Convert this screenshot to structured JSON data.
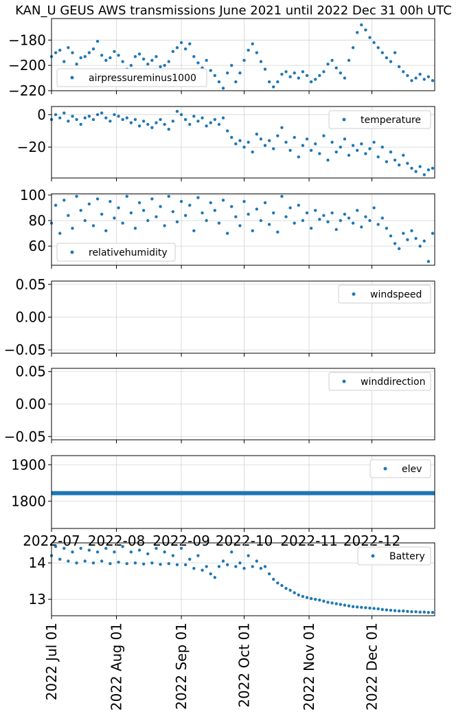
{
  "title": "KAN_U GEUS AWS transmissions June 2021 until 2022 Dec 31 00h UTC",
  "colors": {
    "series": "#1f77b4",
    "grid": "#d3d3d3"
  },
  "chart_data": [
    {
      "type": "scatter",
      "name": "airpressureminus1000",
      "legend": "airpressureminus1000",
      "legend_loc": "lower-left",
      "ylim": [
        -220,
        -163
      ],
      "yticks": [
        -220,
        -200,
        -180
      ],
      "ytick_labels": [
        "−220",
        "−200",
        "−180"
      ],
      "x_range": [
        0,
        183
      ],
      "x": [
        0,
        2,
        4,
        6,
        8,
        10,
        12,
        14,
        16,
        18,
        20,
        22,
        24,
        26,
        28,
        30,
        32,
        34,
        36,
        38,
        40,
        42,
        44,
        46,
        48,
        50,
        52,
        54,
        56,
        58,
        60,
        62,
        64,
        66,
        68,
        70,
        72,
        74,
        76,
        78,
        80,
        82,
        84,
        86,
        88,
        90,
        92,
        94,
        96,
        98,
        100,
        102,
        104,
        106,
        108,
        110,
        112,
        114,
        116,
        118,
        120,
        122,
        124,
        126,
        128,
        130,
        132,
        134,
        136,
        138,
        140,
        142,
        144,
        146,
        148,
        150,
        152,
        154,
        156,
        158,
        160,
        162,
        164,
        166,
        168,
        170,
        172,
        174,
        176,
        178,
        180,
        182
      ],
      "y": [
        -193,
        -190,
        -188,
        -197,
        -186,
        -190,
        -199,
        -194,
        -193,
        -190,
        -187,
        -181,
        -192,
        -196,
        -194,
        -189,
        -192,
        -197,
        -203,
        -200,
        -193,
        -191,
        -195,
        -199,
        -196,
        -193,
        -201,
        -200,
        -197,
        -189,
        -186,
        -182,
        -187,
        -183,
        -193,
        -198,
        -202,
        -196,
        -204,
        -208,
        -213,
        -218,
        -206,
        -200,
        -213,
        -206,
        -196,
        -188,
        -183,
        -190,
        -197,
        -203,
        -213,
        -217,
        -213,
        -207,
        -205,
        -209,
        -206,
        -210,
        -205,
        -208,
        -213,
        -211,
        -208,
        -205,
        -199,
        -196,
        -202,
        -206,
        -210,
        -196,
        -186,
        -174,
        -168,
        -172,
        -178,
        -182,
        -186,
        -190,
        -194,
        -197,
        -190,
        -201,
        -205,
        -208,
        -212,
        -210,
        -207,
        -211,
        -209,
        -212
      ]
    },
    {
      "type": "scatter",
      "name": "temperature",
      "legend": "temperature",
      "legend_loc": "upper-right",
      "ylim": [
        -39,
        5
      ],
      "yticks": [
        -20,
        0
      ],
      "ytick_labels": [
        "−20",
        "0"
      ],
      "x_range": [
        0,
        183
      ],
      "x": [
        0,
        2,
        4,
        6,
        8,
        10,
        12,
        14,
        16,
        18,
        20,
        22,
        24,
        26,
        28,
        30,
        32,
        34,
        36,
        38,
        40,
        42,
        44,
        46,
        48,
        50,
        52,
        54,
        56,
        58,
        60,
        62,
        64,
        66,
        68,
        70,
        72,
        74,
        76,
        78,
        80,
        82,
        84,
        86,
        88,
        90,
        92,
        94,
        96,
        98,
        100,
        102,
        104,
        106,
        108,
        110,
        112,
        114,
        116,
        118,
        120,
        122,
        124,
        126,
        128,
        130,
        132,
        134,
        136,
        138,
        140,
        142,
        144,
        146,
        148,
        150,
        152,
        154,
        156,
        158,
        160,
        162,
        164,
        166,
        168,
        170,
        172,
        174,
        176,
        178,
        180,
        182
      ],
      "y": [
        -3,
        0,
        -2,
        1,
        -4,
        -1,
        -3,
        -6,
        -2,
        -1,
        -3,
        0,
        1,
        -2,
        -4,
        0,
        -1,
        -3,
        -2,
        -5,
        -3,
        -7,
        -4,
        -6,
        -8,
        -5,
        -3,
        -6,
        -9,
        -4,
        2,
        0,
        -3,
        -6,
        -1,
        -4,
        -2,
        -7,
        -5,
        -3,
        -6,
        -2,
        -10,
        -14,
        -18,
        -16,
        -20,
        -17,
        -23,
        -12,
        -15,
        -19,
        -16,
        -21,
        -13,
        -8,
        -17,
        -22,
        -14,
        -26,
        -19,
        -15,
        -22,
        -18,
        -24,
        -13,
        -28,
        -17,
        -23,
        -20,
        -15,
        -25,
        -19,
        -22,
        -18,
        -24,
        -21,
        -17,
        -26,
        -20,
        -29,
        -23,
        -28,
        -31,
        -25,
        -30,
        -33,
        -35,
        -32,
        -37,
        -34,
        -33
      ]
    },
    {
      "type": "scatter",
      "name": "relativehumidity",
      "legend": "relativehumidity",
      "legend_loc": "lower-left",
      "ylim": [
        45,
        101
      ],
      "yticks": [
        60,
        80,
        100
      ],
      "ytick_labels": [
        "60",
        "80",
        "100"
      ],
      "x_range": [
        0,
        183
      ],
      "x": [
        0,
        2,
        4,
        6,
        8,
        10,
        12,
        14,
        16,
        18,
        20,
        22,
        24,
        26,
        28,
        30,
        32,
        34,
        36,
        38,
        40,
        42,
        44,
        46,
        48,
        50,
        52,
        54,
        56,
        58,
        60,
        62,
        64,
        66,
        68,
        70,
        72,
        74,
        76,
        78,
        80,
        82,
        84,
        86,
        88,
        90,
        92,
        94,
        96,
        98,
        100,
        102,
        104,
        106,
        108,
        110,
        112,
        114,
        116,
        118,
        120,
        122,
        124,
        126,
        128,
        130,
        132,
        134,
        136,
        138,
        140,
        142,
        144,
        146,
        148,
        150,
        152,
        154,
        156,
        158,
        160,
        162,
        164,
        166,
        168,
        170,
        172,
        174,
        176,
        178,
        180,
        182
      ],
      "y": [
        78,
        92,
        70,
        96,
        84,
        74,
        99,
        88,
        80,
        93,
        76,
        97,
        85,
        72,
        95,
        82,
        90,
        78,
        99,
        86,
        74,
        94,
        88,
        80,
        97,
        83,
        91,
        76,
        99,
        87,
        79,
        95,
        84,
        92,
        72,
        98,
        86,
        80,
        94,
        88,
        78,
        96,
        70,
        91,
        83,
        76,
        95,
        85,
        72,
        89,
        80,
        94,
        77,
        86,
        71,
        99,
        83,
        90,
        78,
        92,
        80,
        86,
        74,
        88,
        81,
        84,
        79,
        86,
        73,
        80,
        85,
        82,
        78,
        88,
        75,
        83,
        80,
        90,
        77,
        82,
        74,
        68,
        62,
        58,
        70,
        65,
        72,
        66,
        60,
        64,
        48,
        70
      ]
    },
    {
      "type": "scatter",
      "name": "windspeed",
      "legend": "windspeed",
      "legend_loc": "upper-right",
      "ylim": [
        -0.055,
        0.055
      ],
      "yticks": [
        -0.05,
        0.0,
        0.05
      ],
      "ytick_labels": [
        "−0.05",
        "0.00",
        "0.05"
      ],
      "x_range": [
        0,
        183
      ],
      "x": [],
      "y": []
    },
    {
      "type": "scatter",
      "name": "winddirection",
      "legend": "winddirection",
      "legend_loc": "upper-right",
      "ylim": [
        -0.055,
        0.055
      ],
      "yticks": [
        -0.05,
        0.0,
        0.05
      ],
      "ytick_labels": [
        "−0.05",
        "0.00",
        "0.05"
      ],
      "x_range": [
        0,
        183
      ],
      "x": [],
      "y": []
    },
    {
      "type": "line",
      "name": "elev",
      "legend": "elev",
      "legend_loc": "upper-right",
      "ylim": [
        1725,
        1925
      ],
      "yticks": [
        1800,
        1900
      ],
      "ytick_labels": [
        "1800",
        "1900"
      ],
      "x_range": [
        0,
        183
      ],
      "x": [
        0,
        183
      ],
      "y": [
        1822,
        1822
      ],
      "xtick_labels_top": [
        "2022-07",
        "2022-08",
        "2022-09",
        "2022-10",
        "2022-11",
        "2022-12"
      ]
    },
    {
      "type": "scatter",
      "name": "Battery",
      "legend": "Battery",
      "legend_loc": "upper-right",
      "ylim": [
        12.55,
        14.55
      ],
      "yticks": [
        13,
        14
      ],
      "ytick_labels": [
        "13",
        "14"
      ],
      "x_range": [
        0,
        183
      ],
      "x": [
        0,
        2,
        4,
        6,
        8,
        10,
        12,
        14,
        16,
        18,
        20,
        22,
        24,
        26,
        28,
        30,
        32,
        34,
        36,
        38,
        40,
        42,
        44,
        46,
        48,
        50,
        52,
        54,
        56,
        58,
        60,
        62,
        64,
        66,
        68,
        70,
        72,
        74,
        76,
        78,
        80,
        82,
        84,
        86,
        88,
        90,
        92,
        94,
        96,
        98,
        100,
        102,
        104,
        106,
        108,
        110,
        112,
        114,
        116,
        118,
        120,
        122,
        124,
        126,
        128,
        130,
        132,
        134,
        136,
        138,
        140,
        142,
        144,
        146,
        148,
        150,
        152,
        154,
        156,
        158,
        160,
        162,
        164,
        166,
        168,
        170,
        172,
        174,
        176,
        178,
        180,
        182
      ],
      "y": [
        14.2,
        14.45,
        14.1,
        14.4,
        14.05,
        14.3,
        14.0,
        14.4,
        14.05,
        14.35,
        14.0,
        14.3,
        14.05,
        14.4,
        13.98,
        14.3,
        14.02,
        14.45,
        13.98,
        14.3,
        14.0,
        14.35,
        13.97,
        14.25,
        14.0,
        14.4,
        13.96,
        14.3,
        13.98,
        14.2,
        13.95,
        14.4,
        13.95,
        14.1,
        13.85,
        14.2,
        13.8,
        13.9,
        13.7,
        13.6,
        13.9,
        14.05,
        13.95,
        14.3,
        13.9,
        14.0,
        13.85,
        14.2,
        13.9,
        14.05,
        13.85,
        13.9,
        13.7,
        13.55,
        13.45,
        13.38,
        13.3,
        13.25,
        13.18,
        13.12,
        13.08,
        13.05,
        13.02,
        13.0,
        12.98,
        12.95,
        12.92,
        12.9,
        12.88,
        12.86,
        12.84,
        12.82,
        12.8,
        12.79,
        12.78,
        12.77,
        12.76,
        12.75,
        12.74,
        12.72,
        12.71,
        12.7,
        12.69,
        12.68,
        12.68,
        12.67,
        12.66,
        12.66,
        12.65,
        12.65,
        12.64,
        12.64
      ],
      "xtick_labels_bottom": [
        "2022 Jul 01",
        "2022 Aug 01",
        "2022 Sep 01",
        "2022 Oct 01",
        "2022 Nov 01",
        "2022 Dec 01"
      ]
    }
  ],
  "x_months": [
    0,
    31,
    62,
    92,
    123,
    153
  ]
}
